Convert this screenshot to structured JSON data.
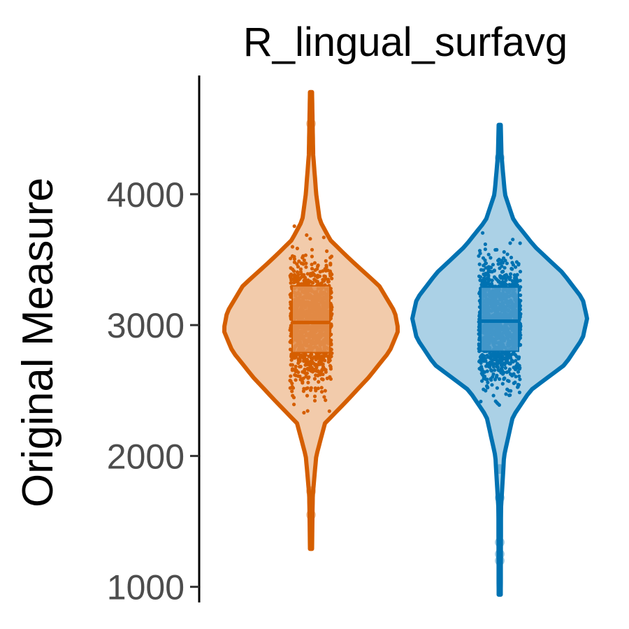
{
  "chart_data": {
    "type": "violin",
    "title": "R_lingual_surfavg",
    "xlabel": "",
    "ylabel": "Original Measure",
    "ylim": [
      870,
      4950
    ],
    "yticks": [
      1000,
      2000,
      3000,
      4000
    ],
    "ytick_labels": [
      "1000",
      "2000",
      "3000",
      "4000"
    ],
    "grid": false,
    "legend": "none",
    "series": [
      {
        "color": "#D55E00",
        "fill": "#F2CBAB",
        "box_fill": "#E49150",
        "min": 1290,
        "max": 4780,
        "q1": 2790,
        "median": 3020,
        "q3": 3300,
        "outliers": [
          1550,
          1730,
          4540
        ],
        "density_profile": [
          [
            1290,
            0.012
          ],
          [
            1700,
            0.02
          ],
          [
            2000,
            0.06
          ],
          [
            2250,
            0.16
          ],
          [
            2400,
            0.38
          ],
          [
            2600,
            0.66
          ],
          [
            2800,
            0.9
          ],
          [
            2960,
            1.0
          ],
          [
            3100,
            0.96
          ],
          [
            3300,
            0.78
          ],
          [
            3500,
            0.45
          ],
          [
            3650,
            0.22
          ],
          [
            3800,
            0.1
          ],
          [
            4000,
            0.06
          ],
          [
            4300,
            0.025
          ],
          [
            4780,
            0.012
          ]
        ]
      },
      {
        "color": "#0072B2",
        "fill": "#ABD1E6",
        "box_fill": "#4D9CCC",
        "min": 940,
        "max": 4530,
        "q1": 2800,
        "median": 3030,
        "q3": 3290,
        "outliers": [
          1200,
          1250,
          1340,
          1680,
          1900,
          4280
        ],
        "density_profile": [
          [
            940,
            0.012
          ],
          [
            1600,
            0.015
          ],
          [
            2000,
            0.05
          ],
          [
            2300,
            0.15
          ],
          [
            2500,
            0.35
          ],
          [
            2700,
            0.75
          ],
          [
            2900,
            0.95
          ],
          [
            3050,
            1.0
          ],
          [
            3200,
            0.95
          ],
          [
            3400,
            0.72
          ],
          [
            3600,
            0.4
          ],
          [
            3800,
            0.16
          ],
          [
            4000,
            0.06
          ],
          [
            4300,
            0.02
          ],
          [
            4530,
            0.012
          ]
        ]
      }
    ]
  }
}
